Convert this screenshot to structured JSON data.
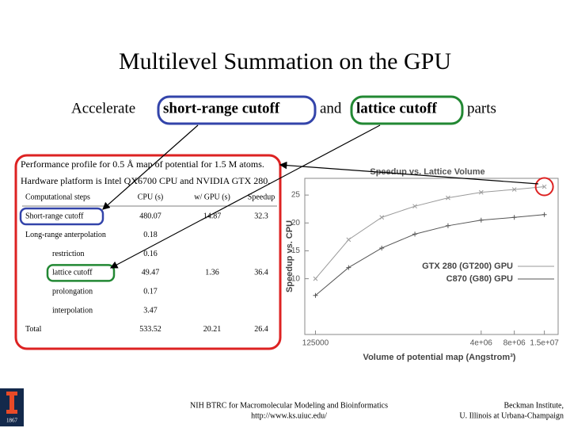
{
  "header": {
    "title": "Multilevel Summation on the GPU",
    "subtitle": {
      "lead": "Accelerate",
      "first": "short-range cutoff",
      "middle": "and",
      "second": "lattice cutoff",
      "tail": "parts"
    }
  },
  "table": {
    "caption": [
      "Performance profile for 0.5 Å map of potential for 1.5 M atoms.",
      "Hardware platform is Intel QX6700 CPU and NVIDIA GTX 280."
    ],
    "columns": [
      "Computational steps",
      "CPU (s)",
      "w/ GPU (s)",
      "Speedup"
    ],
    "rows": [
      {
        "step": "Short-range cutoff",
        "cpu": "480.07",
        "gpu": "14.87",
        "speedup": "32.3"
      },
      {
        "step": "Long-range anterpolation",
        "cpu": "0.18"
      },
      {
        "step": "restriction",
        "cpu": "0.16",
        "indent": true
      },
      {
        "step": "lattice cutoff",
        "cpu": "49.47",
        "gpu": "1.36",
        "speedup": "36.4",
        "indent": true
      },
      {
        "step": "prolongation",
        "cpu": "0.17",
        "indent": true
      },
      {
        "step": "interpolation",
        "cpu": "3.47",
        "indent": true
      },
      {
        "step": "Total",
        "cpu": "533.52",
        "gpu": "20.21",
        "speedup": "26.4"
      }
    ]
  },
  "chart_data": {
    "type": "line",
    "title": "Speedup vs. Lattice Volume",
    "xlabel": "Volume of potential map (Angstrom³)",
    "ylabel": "Speedup vs. CPU",
    "x": [
      125000,
      250000,
      500000,
      1000000,
      2000000,
      4000000,
      8000000,
      15000000
    ],
    "series": [
      {
        "name": "GTX 280 (GT200) GPU",
        "color": "#9a9a9a",
        "marker": "x",
        "values": [
          10,
          17,
          21,
          23,
          24.5,
          25.5,
          26,
          26.5
        ]
      },
      {
        "name": "C870 (G80) GPU",
        "color": "#555555",
        "marker": "+",
        "values": [
          7,
          12,
          15.5,
          18,
          19.5,
          20.5,
          21,
          21.5
        ]
      }
    ],
    "xscale": "log",
    "xlim": [
      100000,
      20000000
    ],
    "xticks": [
      125000,
      {
        "value": 4000000,
        "label": "4e+06"
      },
      {
        "value": 8000000,
        "label": "8e+06"
      },
      {
        "value": 15000000,
        "label": "1.5e+07"
      }
    ],
    "ylim": [
      0,
      28
    ],
    "yticks": [
      10,
      15,
      20,
      25
    ],
    "legend": "right"
  },
  "footer": {
    "center": [
      "NIH BTRC for Macromolecular Modeling and Bioinformatics",
      "http://www.ks.uiuc.edu/"
    ],
    "right": [
      "Beckman Institute,",
      "U. Illinois at Urbana-Champaign"
    ],
    "logo_year": "1867"
  }
}
